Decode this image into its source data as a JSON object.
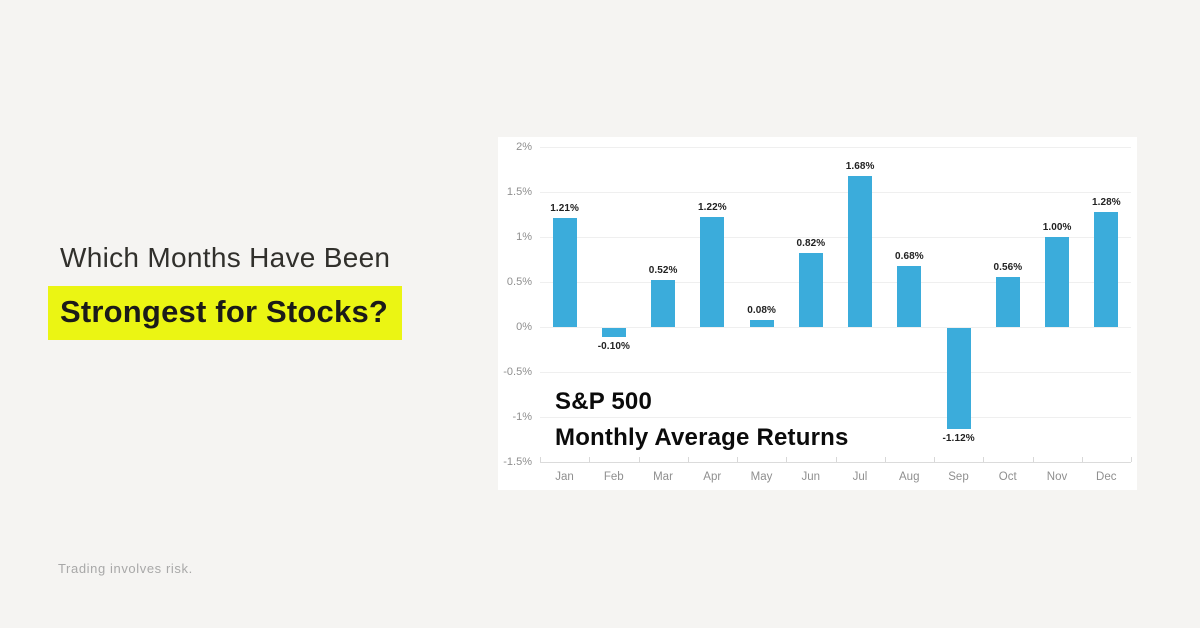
{
  "headline": {
    "line1": "Which Months Have Been",
    "line2": "Strongest for Stocks?"
  },
  "footer": {
    "disclaimer": "Trading involves risk."
  },
  "chart": {
    "title_line1": "S&P 500",
    "title_line2": "Monthly Average Returns"
  },
  "colors": {
    "page_background": "#F5F4F2",
    "headline_text": "#31302C",
    "highlight_yellow": "#EBF513",
    "card_background": "#FFFFFF",
    "bar_blue": "#3BACDB",
    "gridline": "#EFEFEF",
    "axis_text": "#8F8F8F",
    "value_label_text": "#222222",
    "disclaimer_text": "#A8A8A8"
  },
  "chart_data": {
    "type": "bar",
    "title": "S&P 500 Monthly Average Returns",
    "xlabel": "",
    "ylabel": "",
    "categories": [
      "Jan",
      "Feb",
      "Mar",
      "Apr",
      "May",
      "Jun",
      "Jul",
      "Aug",
      "Sep",
      "Oct",
      "Nov",
      "Dec"
    ],
    "values": [
      1.21,
      -0.1,
      0.52,
      1.22,
      0.08,
      0.82,
      1.68,
      0.68,
      -1.12,
      0.56,
      1.0,
      1.28
    ],
    "value_labels": [
      "1.21%",
      "-0.10%",
      "0.52%",
      "1.22%",
      "0.08%",
      "0.82%",
      "1.68%",
      "0.68%",
      "-1.12%",
      "0.56%",
      "1.00%",
      "1.28%"
    ],
    "y_ticks": [
      "2%",
      "1.5%",
      "1%",
      "0.5%",
      "0%",
      "-0.5%",
      "-1%",
      "-1.5%"
    ],
    "y_tick_values": [
      2,
      1.5,
      1,
      0.5,
      0,
      -0.5,
      -1,
      -1.5
    ],
    "ylim": [
      -1.5,
      2
    ],
    "grid": true,
    "legend": false,
    "bar_color": "#3BACDB"
  }
}
